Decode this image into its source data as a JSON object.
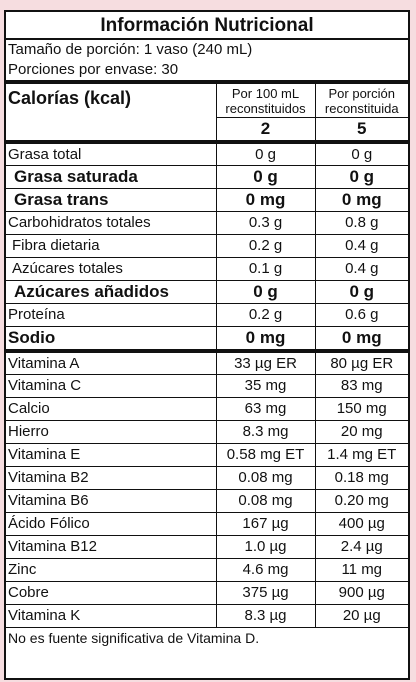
{
  "title": "Información Nutricional",
  "serving_size": "Tamaño de porción: 1 vaso (240 mL)",
  "servings_per_container": "Porciones por envase: 30",
  "calories_label": "Calorías (kcal)",
  "col1_header": "Por 100 mL reconstituidos",
  "col2_header": "Por porción reconstituida",
  "calories_col1": "2",
  "calories_col2": "5",
  "macros": [
    {
      "name": "Grasa total",
      "v1": "0 g",
      "v2": "0 g"
    },
    {
      "name": "Grasa saturada",
      "v1": "0 g",
      "v2": "0 g"
    },
    {
      "name": "Grasa trans",
      "v1": "0 mg",
      "v2": "0 mg"
    },
    {
      "name": "Carbohidratos totales",
      "v1": "0.3 g",
      "v2": "0.8 g"
    },
    {
      "name": "Fibra dietaria",
      "v1": "0.2 g",
      "v2": "0.4 g"
    },
    {
      "name": "Azúcares totales",
      "v1": "0.1 g",
      "v2": "0.4 g"
    },
    {
      "name": "Azúcares añadidos",
      "v1": "0 g",
      "v2": "0 g"
    },
    {
      "name": "Proteína",
      "v1": "0.2 g",
      "v2": "0.6 g"
    },
    {
      "name": "Sodio",
      "v1": "0 mg",
      "v2": "0 mg"
    }
  ],
  "vitamins": [
    {
      "name": "Vitamina A",
      "v1": "33 µg ER",
      "v2": "80 µg ER"
    },
    {
      "name": "Vitamina C",
      "v1": "35 mg",
      "v2": "83 mg"
    },
    {
      "name": "Calcio",
      "v1": "63 mg",
      "v2": "150 mg"
    },
    {
      "name": "Hierro",
      "v1": "8.3 mg",
      "v2": "20 mg"
    },
    {
      "name": "Vitamina E",
      "v1": "0.58 mg ET",
      "v2": "1.4 mg ET"
    },
    {
      "name": "Vitamina B2",
      "v1": "0.08 mg",
      "v2": "0.18 mg"
    },
    {
      "name": "Vitamina B6",
      "v1": "0.08 mg",
      "v2": "0.20 mg"
    },
    {
      "name": "Ácido Fólico",
      "v1": "167 µg",
      "v2": "400 µg"
    },
    {
      "name": "Vitamina B12",
      "v1": "1.0 µg",
      "v2": "2.4 µg"
    },
    {
      "name": "Zinc",
      "v1": "4.6 mg",
      "v2": "11 mg"
    },
    {
      "name": "Cobre",
      "v1": "375 µg",
      "v2": "900 µg"
    },
    {
      "name": "Vitamina K",
      "v1": "8.3 µg",
      "v2": "20 µg"
    }
  ],
  "footer": "No es fuente significativa de Vitamina D."
}
